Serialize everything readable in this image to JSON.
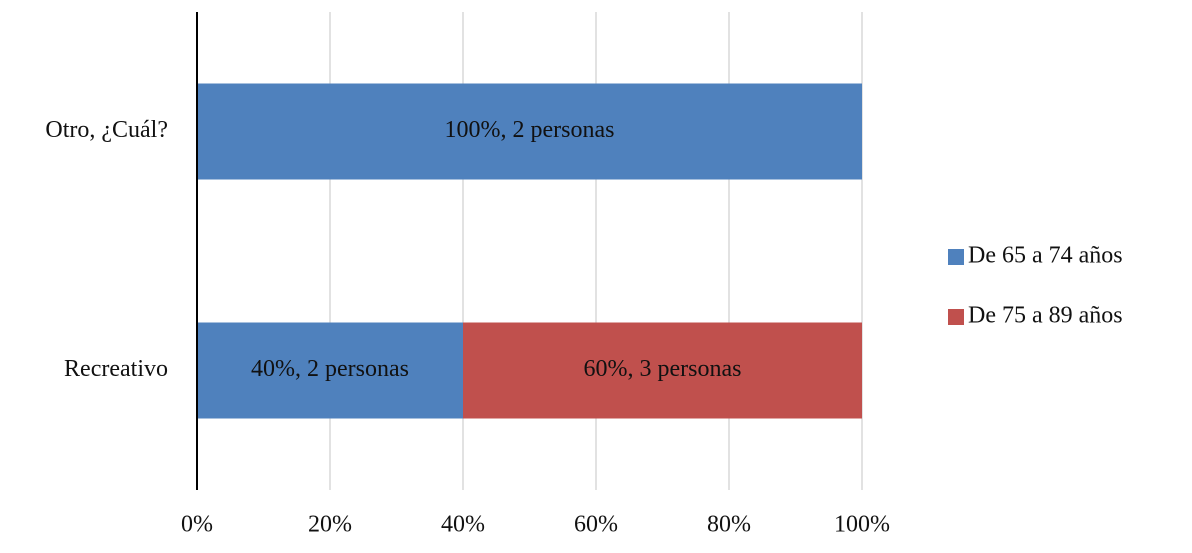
{
  "chart_data": {
    "type": "stacked_barh",
    "categories": [
      "Otro, ¿Cuál?",
      "Recreativo"
    ],
    "series": [
      {
        "name": "De 65 a 74 años",
        "color": "#4f81bd",
        "values": [
          100,
          40
        ],
        "value_labels": [
          "100%, 2 personas",
          "40%, 2 personas"
        ]
      },
      {
        "name": "De 75 a 89 años",
        "color": "#c0504d",
        "values": [
          0,
          60
        ],
        "value_labels": [
          null,
          "60%, 3 personas"
        ]
      }
    ],
    "xlim": [
      0,
      100
    ],
    "xticks": [
      {
        "value": 0,
        "label": "0%"
      },
      {
        "value": 20,
        "label": "20%"
      },
      {
        "value": 40,
        "label": "40%"
      },
      {
        "value": 60,
        "label": "60%"
      },
      {
        "value": 80,
        "label": "80%"
      },
      {
        "value": 100,
        "label": "100%"
      }
    ],
    "grid": true,
    "legend": "right"
  }
}
